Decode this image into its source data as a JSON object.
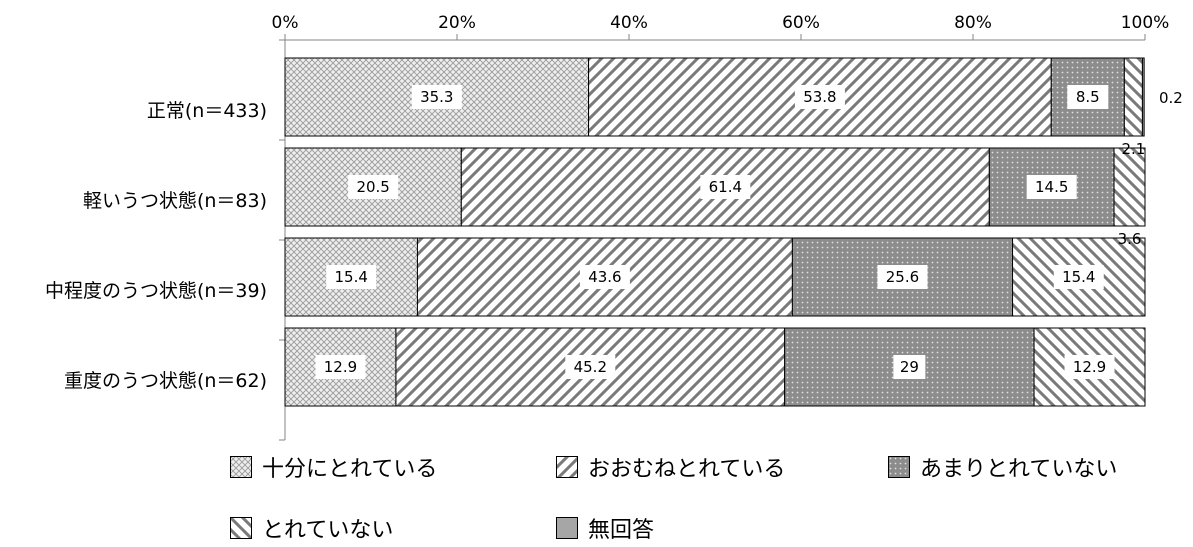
{
  "chart_data": {
    "type": "bar",
    "stacked": true,
    "orientation": "horizontal",
    "percent_stacked": true,
    "x_ticks": [
      "0%",
      "20%",
      "40%",
      "60%",
      "80%",
      "100%"
    ],
    "xlim": [
      0,
      100
    ],
    "categories": [
      "正常(n＝433)",
      "軽いうつ状態(n＝83)",
      "中程度のうつ状態(n＝39)",
      "重度のうつ状態(n＝62)"
    ],
    "series": [
      {
        "name": "十分にとれている",
        "values": [
          35.3,
          20.5,
          15.4,
          12.9
        ],
        "labels": [
          "35.3",
          "20.5",
          "15.4",
          "12.9"
        ],
        "pattern": "crosshatch"
      },
      {
        "name": "おおむねとれている",
        "values": [
          53.8,
          61.4,
          43.6,
          45.2
        ],
        "labels": [
          "53.8",
          "61.4",
          "43.6",
          "45.2"
        ],
        "pattern": "diagonal-up"
      },
      {
        "name": "あまりとれていない",
        "values": [
          8.5,
          14.5,
          25.6,
          29
        ],
        "labels": [
          "8.5",
          "14.5",
          "25.6",
          "29"
        ],
        "pattern": "dots"
      },
      {
        "name": "とれていない",
        "values": [
          2.1,
          3.6,
          15.4,
          12.9
        ],
        "labels": [
          "2.1",
          "3.6",
          "15.4",
          "12.9"
        ],
        "pattern": "diagonal-down"
      },
      {
        "name": "無回答",
        "values": [
          0.2,
          0,
          0,
          0
        ],
        "labels": [
          "0.2",
          "",
          "",
          ""
        ],
        "pattern": "solid-gray"
      }
    ],
    "grid": false,
    "legend_position": "bottom"
  }
}
